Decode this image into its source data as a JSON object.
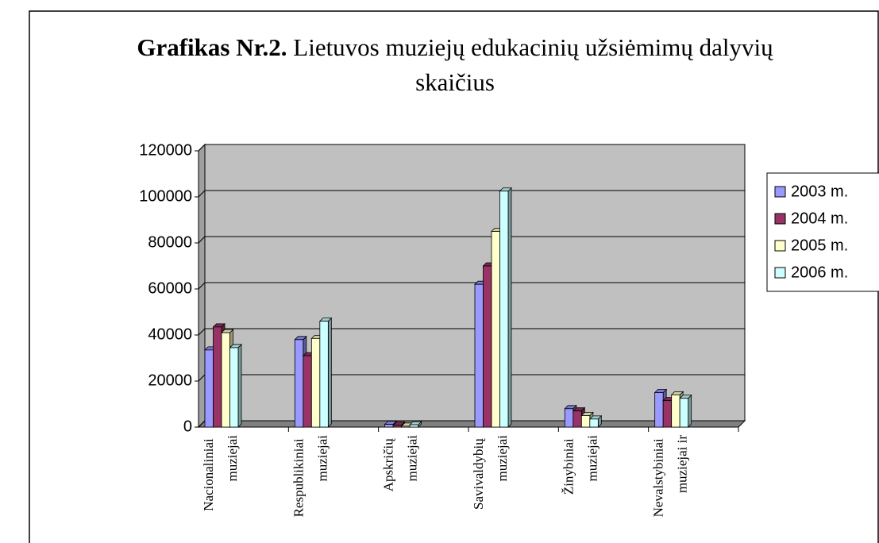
{
  "chart_data": {
    "type": "bar",
    "title_bold": "Grafikas Nr.2.",
    "title": "Lietuvos muziejų edukacinių užsiėmimų dalyvių skaičius",
    "categories": [
      "Nacionaliniai muziejai",
      "Respublikiniai muziejai",
      "Apskričių muziejai",
      "Savivaldybių muziejai",
      "Žinybiniai muziejai",
      "Nevalstybiniai muziejai ir"
    ],
    "series": [
      {
        "name": "2003 m.",
        "color": "#9999ff",
        "values": [
          33500,
          38000,
          1200,
          62000,
          8000,
          15000
        ]
      },
      {
        "name": "2004 m.",
        "color": "#993366",
        "values": [
          43500,
          31000,
          800,
          70000,
          7000,
          11500
        ]
      },
      {
        "name": "2005 m.",
        "color": "#ffffcc",
        "values": [
          41000,
          38500,
          400,
          85000,
          5000,
          14000
        ]
      },
      {
        "name": "2006 m.",
        "color": "#ccffff",
        "values": [
          34500,
          46000,
          1000,
          102500,
          3500,
          12500
        ]
      }
    ],
    "ylim": [
      0,
      120000
    ],
    "yticks": [
      0,
      20000,
      40000,
      60000,
      80000,
      100000,
      120000
    ],
    "grid": true,
    "legend": "right"
  }
}
